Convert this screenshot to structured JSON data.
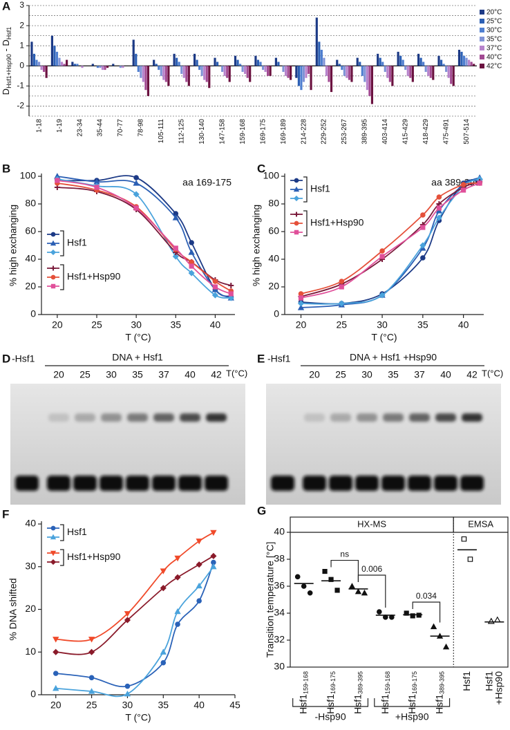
{
  "chart_data": [
    {
      "type": "bar",
      "panel_label": "A",
      "y_label_parts": [
        "D",
        "Hsf1+Hsp90",
        " - D",
        "Hsf1"
      ],
      "categories": [
        "1-18",
        "1-19",
        "23-34",
        "35-44",
        "70-77",
        "78-98",
        "105-111",
        "112-125",
        "130-140",
        "147-158",
        "159-168",
        "169-175",
        "169-189",
        "214-228",
        "229-252",
        "253-267",
        "389-395",
        "403-414",
        "415-429",
        "418-429",
        "475-491",
        "507-514"
      ],
      "ylim": [
        -2.5,
        3
      ],
      "yticks": [
        -2,
        -1,
        0,
        1,
        2,
        3
      ],
      "grid_yticks": [
        -2.5,
        -2,
        -1.5,
        -1,
        -0.5,
        0.5,
        1,
        1.5,
        2,
        2.5,
        3
      ],
      "series": [
        {
          "name": "20°C",
          "color": "#1c3a86",
          "values": [
            1.2,
            1.5,
            0.2,
            0.1,
            0.1,
            1.3,
            0.3,
            0.6,
            0.6,
            0.4,
            0.5,
            0.5,
            0.4,
            -0.6,
            2.4,
            0.3,
            0.4,
            0.6,
            0.7,
            0.6,
            0.5,
            0.8
          ]
        },
        {
          "name": "25°C",
          "color": "#2b5fb4",
          "values": [
            0.6,
            1.0,
            0.1,
            0,
            0,
            0.6,
            0.1,
            0.4,
            0.3,
            0.2,
            0.3,
            0.3,
            0.2,
            -1.0,
            1.2,
            0.1,
            0.2,
            0.4,
            0.5,
            0.4,
            0.3,
            0.7
          ]
        },
        {
          "name": "30°C",
          "color": "#4f7fd0",
          "values": [
            0.3,
            0.7,
            0.1,
            -0.1,
            0,
            -0.3,
            -0.2,
            0.2,
            -0.2,
            0,
            0.1,
            0.2,
            0,
            -1.2,
            0.8,
            -0.2,
            -0.5,
            0.2,
            0.3,
            0.2,
            0.1,
            0.5
          ]
        },
        {
          "name": "35°C",
          "color": "#8093d6",
          "values": [
            0.2,
            0.4,
            0,
            -0.1,
            -0.1,
            -0.6,
            -0.5,
            -0.4,
            -0.5,
            -0.3,
            -0.3,
            -0.2,
            -0.3,
            -0.8,
            0.4,
            -0.5,
            -0.8,
            -0.3,
            -0.2,
            -0.3,
            -0.3,
            0.4
          ]
        },
        {
          "name": "37°C",
          "color": "#b783cc",
          "values": [
            -0.2,
            0.2,
            -0.1,
            -0.2,
            -0.1,
            -0.8,
            -0.7,
            -0.6,
            -0.7,
            -0.5,
            -0.4,
            -0.3,
            -0.5,
            -0.6,
            -0.5,
            -0.6,
            -1.2,
            -0.6,
            -0.5,
            -0.5,
            -0.6,
            0.3
          ]
        },
        {
          "name": "40°C",
          "color": "#a24a92",
          "values": [
            -0.3,
            0.1,
            0,
            -0.2,
            0,
            -1.2,
            -0.8,
            -0.8,
            -0.8,
            -0.6,
            -0.6,
            -0.5,
            -0.6,
            -0.4,
            -0.8,
            -0.7,
            -1.5,
            -0.8,
            -0.6,
            -0.6,
            -0.9,
            0.2
          ]
        },
        {
          "name": "42°C",
          "color": "#6b1240",
          "values": [
            -0.6,
            0.3,
            0,
            -0.1,
            0,
            -1.5,
            -1.0,
            -1.0,
            -1.1,
            -0.8,
            -0.8,
            -0.5,
            -0.7,
            -1.2,
            -1.3,
            -0.8,
            -1.9,
            -1.0,
            -0.8,
            -0.7,
            -1.0,
            0.1
          ]
        }
      ]
    },
    {
      "type": "line",
      "panel_label": "B",
      "subtitle": "aa 169-175",
      "x_label": "T (°C)",
      "y_label": "% high exchanging",
      "x": [
        20,
        25,
        30,
        35,
        37,
        40,
        42
      ],
      "xlim": [
        18,
        42.5
      ],
      "xticks": [
        20,
        25,
        30,
        35,
        40
      ],
      "ylim": [
        0,
        100
      ],
      "yticks": [
        0,
        20,
        40,
        60,
        80,
        100
      ],
      "legend_position": "middle-left",
      "legend_groups": [
        {
          "name": "Hsf1",
          "series": [
            {
              "color": "#1c3a86",
              "marker": "circle",
              "values": [
                97,
                97,
                99,
                73,
                52,
                18,
                13
              ]
            },
            {
              "color": "#2b5fb4",
              "marker": "triangle",
              "values": [
                100,
                96,
                95,
                70,
                45,
                18,
                12
              ]
            },
            {
              "color": "#4aa3dc",
              "marker": "diamond",
              "values": [
                98,
                93,
                87,
                42,
                30,
                14,
                12
              ]
            }
          ]
        },
        {
          "name": "Hsf1+Hsp90",
          "series": [
            {
              "color": "#7a1a3a",
              "marker": "plus",
              "values": [
                92,
                89,
                76,
                45,
                38,
                25,
                21
              ]
            },
            {
              "color": "#e5503a",
              "marker": "circle",
              "values": [
                95,
                90,
                78,
                47,
                38,
                24,
                17
              ]
            },
            {
              "color": "#e0509a",
              "marker": "square",
              "values": [
                97,
                92,
                77,
                48,
                35,
                20,
                15
              ]
            }
          ]
        }
      ]
    },
    {
      "type": "line",
      "panel_label": "C",
      "subtitle": "aa 389-395",
      "x_label": "T (°C)",
      "y_label": "% high exchanging",
      "x": [
        20,
        25,
        30,
        35,
        37,
        40,
        42
      ],
      "xlim": [
        18,
        42.5
      ],
      "xticks": [
        20,
        25,
        30,
        35,
        40
      ],
      "ylim": [
        0,
        100
      ],
      "yticks": [
        0,
        20,
        40,
        60,
        80,
        100
      ],
      "legend_position": "top-left",
      "legend_groups": [
        {
          "name": "Hsf1",
          "series": [
            {
              "color": "#1c3a86",
              "marker": "circle",
              "values": [
                9,
                8,
                15,
                41,
                68,
                95,
                96
              ]
            },
            {
              "color": "#2b5fb4",
              "marker": "triangle",
              "values": [
                5,
                7,
                14,
                48,
                75,
                94,
                99
              ]
            },
            {
              "color": "#4aa3dc",
              "marker": "diamond",
              "values": [
                8,
                8,
                14,
                50,
                70,
                93,
                98
              ]
            }
          ]
        },
        {
          "name": "Hsf1+Hsp90",
          "series": [
            {
              "color": "#7a1a3a",
              "marker": "plus",
              "values": [
                13,
                22,
                40,
                65,
                80,
                92,
                96
              ]
            },
            {
              "color": "#e5503a",
              "marker": "circle",
              "values": [
                15,
                24,
                46,
                72,
                85,
                94,
                95
              ]
            },
            {
              "color": "#e0509a",
              "marker": "square",
              "values": [
                12,
                20,
                42,
                63,
                77,
                90,
                95
              ]
            }
          ]
        }
      ]
    },
    {
      "type": "line",
      "panel_label": "F",
      "x_label": "T (°C)",
      "y_label": "% DNA shifted",
      "x": [
        20,
        25,
        30,
        35,
        37,
        40,
        42
      ],
      "xlim": [
        18,
        45
      ],
      "xticks": [
        20,
        25,
        30,
        35,
        40,
        45
      ],
      "ylim": [
        0,
        40
      ],
      "yticks": [
        0,
        10,
        20,
        30,
        40
      ],
      "legend_position": "top-left",
      "legend_groups": [
        {
          "name": "Hsf1",
          "series": [
            {
              "color": "#2a62b8",
              "marker": "circle",
              "values": [
                5,
                4,
                2,
                7.5,
                16.5,
                22,
                31
              ]
            },
            {
              "color": "#4aa3dc",
              "marker": "triangle",
              "values": [
                1.5,
                0.8,
                0.2,
                10,
                19.5,
                25.5,
                30
              ]
            }
          ]
        },
        {
          "name": "Hsf1+Hsp90",
          "series": [
            {
              "color": "#f04a2a",
              "marker": "triangle-down",
              "values": [
                13,
                13,
                19,
                29,
                32,
                36,
                38
              ]
            },
            {
              "color": "#8a1a2a",
              "marker": "diamond",
              "values": [
                10,
                10,
                17.5,
                25,
                27.5,
                30.5,
                32.5
              ]
            }
          ]
        }
      ]
    },
    {
      "type": "dot",
      "panel_label": "G",
      "y_label": "Transition temperature [°C]",
      "ylim": [
        30,
        40
      ],
      "yticks": [
        30,
        32,
        34,
        36,
        38,
        40
      ],
      "sections": [
        {
          "name": "HX-MS",
          "groups": [
            {
              "name": "-Hsp90",
              "categories": [
                {
                  "label": [
                    "Hsf1"
                  ],
                  "sub": "159-168",
                  "marker": "circle",
                  "points": [
                    36.7,
                    36.0,
                    35.5
                  ],
                  "mean": 36.2
                },
                {
                  "label": [
                    "Hsf1"
                  ],
                  "sub": "169-175",
                  "marker": "square",
                  "points": [
                    37.1,
                    36.5,
                    35.7
                  ],
                  "mean": 36.4,
                  "p_vs_next": "ns"
                },
                {
                  "label": [
                    "Hsf1"
                  ],
                  "sub": "389-395",
                  "marker": "triangle",
                  "points": [
                    36.0,
                    35.6,
                    35.5
                  ],
                  "mean": 35.8,
                  "p_vs_next": "0.006"
                }
              ]
            },
            {
              "name": "+Hsp90",
              "categories": [
                {
                  "label": [
                    "Hsf1"
                  ],
                  "sub": "159-168",
                  "marker": "circle",
                  "points": [
                    34.1,
                    33.7,
                    33.7
                  ],
                  "mean": 33.85
                },
                {
                  "label": [
                    "Hsf1"
                  ],
                  "sub": "169-175",
                  "marker": "square",
                  "points": [
                    34.0,
                    33.8,
                    33.85
                  ],
                  "mean": 33.88,
                  "p_vs_next": "0.034"
                },
                {
                  "label": [
                    "Hsf1"
                  ],
                  "sub": "389-395",
                  "marker": "triangle",
                  "points": [
                    33.0,
                    32.3,
                    31.5
                  ],
                  "mean": 32.3
                }
              ]
            }
          ]
        },
        {
          "name": "EMSA",
          "groups": [
            {
              "categories": [
                {
                  "label": [
                    "Hsf1"
                  ],
                  "marker": "open-square",
                  "points": [
                    39.5,
                    38.0
                  ],
                  "mean": 38.7
                },
                {
                  "label": [
                    "Hsf1",
                    "+Hsp90"
                  ],
                  "marker": "open-triangle",
                  "points": [
                    33.4,
                    33.5
                  ],
                  "mean": 33.35
                }
              ]
            }
          ]
        }
      ]
    }
  ],
  "gels": [
    {
      "panel_label": "D",
      "control_label": "-Hsf1",
      "condition": "DNA + Hsf1",
      "lanes": [
        20,
        25,
        30,
        35,
        37,
        40,
        42
      ],
      "unit": "T(°C)"
    },
    {
      "panel_label": "E",
      "control_label": "-Hsf1",
      "condition": "DNA + Hsf1 +Hsp90",
      "lanes": [
        20,
        25,
        30,
        35,
        37,
        40,
        42
      ],
      "unit": "T(°C)"
    }
  ]
}
